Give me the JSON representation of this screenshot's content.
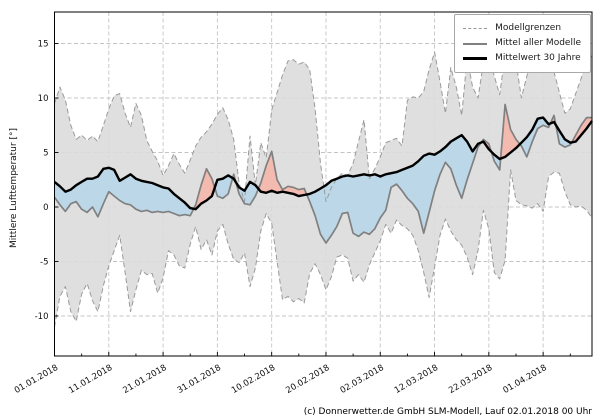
{
  "figure": {
    "footer": "(c) Donnerwetter.de GmbH SLM-Modell, Lauf 02.01.2018 00 Uhr"
  },
  "legend": {
    "position": "upper right",
    "entries": [
      {
        "label": "Modellgrenzen",
        "line": "dashed-thin-gray"
      },
      {
        "label": "Mittel aller Modelle",
        "line": "solid-gray"
      },
      {
        "label": "Mittelwert 30 Jahre",
        "line": "solid-thick-black"
      }
    ]
  },
  "chart_data": {
    "type": "line+area",
    "title": "",
    "xlabel": "",
    "ylabel": "Mittlere Lufttemperatur [°]",
    "x_is_daily_from": "01.01.2018",
    "x_tick_days": [
      0,
      10,
      20,
      30,
      40,
      50,
      60,
      70,
      80,
      90
    ],
    "x_tick_labels": [
      "01.01.2018",
      "11.01.2018",
      "21.01.2018",
      "31.01.2018",
      "10.02.2018",
      "20.02.2018",
      "02.03.2018",
      "12.03.2018",
      "22.03.2018",
      "01.04.2018"
    ],
    "x_minor_step": 5,
    "yticks": [
      -10,
      -5,
      0,
      5,
      10,
      15
    ],
    "ylim": [
      -13.7,
      17.9
    ],
    "grid": true,
    "colors": {
      "envelope_fill": "#dcdcdc",
      "envelope_edge": "#9a9a9a",
      "warmer_fill": "#f3b7ad",
      "colder_fill": "#b9d7e8",
      "model_mean_line": "#808080",
      "climate_line": "#000000",
      "grid": "#c4c4c4",
      "frame": "#000000"
    },
    "series": [
      {
        "name": "Modellgrenzen (Maximum)",
        "role": "envelope_top",
        "values": [
          9.5,
          11.0,
          9.8,
          7.5,
          6.2,
          6.6,
          6.1,
          6.5,
          6.0,
          7.5,
          9.0,
          10.2,
          10.4,
          8.6,
          7.3,
          9.5,
          8.4,
          6.1,
          5.1,
          4.2,
          2.9,
          3.8,
          4.9,
          3.9,
          3.1,
          4.3,
          5.6,
          6.4,
          6.9,
          7.6,
          8.5,
          9.1,
          8.0,
          6.2,
          2.2,
          0.5,
          6.5,
          2.0,
          5.9,
          4.5,
          8.9,
          10.5,
          12.1,
          13.4,
          13.5,
          13.1,
          13.3,
          12.6,
          9.0,
          4.0,
          0.5,
          1.8,
          2.6,
          3.1,
          2.9,
          4.0,
          6.0,
          8.0,
          2.6,
          3.5,
          4.6,
          5.9,
          6.1,
          6.3,
          5.6,
          9.8,
          10.1,
          10.0,
          10.6,
          12.6,
          14.2,
          11.5,
          8.6,
          12.8,
          11.0,
          8.4,
          13.7,
          11.0,
          10.0,
          13.2,
          14.0,
          12.0,
          10.3,
          14.0,
          13.6,
          13.3,
          10.0,
          12.0,
          13.8,
          13.6,
          13.9,
          13.8,
          12.4,
          10.5,
          8.6,
          9.0,
          10.4,
          11.8,
          13.2,
          13.9
        ]
      },
      {
        "name": "Modellgrenzen (Minimum)",
        "role": "envelope_bottom",
        "values": [
          -11.0,
          -8.2,
          -7.3,
          -9.6,
          -10.5,
          -8.0,
          -7.0,
          -8.6,
          -9.6,
          -7.2,
          -5.4,
          -4.0,
          -2.6,
          -6.0,
          -9.6,
          -7.6,
          -5.8,
          -6.2,
          -6.1,
          -7.9,
          -6.5,
          -4.0,
          -4.4,
          -5.4,
          -5.6,
          -3.4,
          -1.8,
          -3.9,
          -3.0,
          -4.4,
          -2.2,
          -1.6,
          -3.4,
          -4.8,
          -5.1,
          -4.2,
          -7.3,
          -5.6,
          -2.2,
          -0.6,
          -1.5,
          -5.0,
          -8.5,
          -8.2,
          -8.7,
          -8.4,
          -8.8,
          -6.1,
          -5.2,
          -6.2,
          -7.6,
          -6.4,
          -4.6,
          -4.4,
          -4.7,
          -6.8,
          -6.2,
          -6.9,
          -5.3,
          -4.2,
          -3.1,
          -1.6,
          -2.4,
          -1.2,
          -1.7,
          -2.0,
          -2.6,
          -4.0,
          -6.0,
          -8.3,
          -5.5,
          -2.6,
          -1.1,
          -2.2,
          -3.0,
          -3.5,
          -4.6,
          -6.2,
          -4.0,
          -0.3,
          -2.0,
          -6.0,
          -6.6,
          -4.9,
          3.4,
          0.6,
          0.2,
          0.1,
          -0.1,
          0.3,
          -0.4,
          2.8,
          3.2,
          3.1,
          1.4,
          0.2,
          0.0,
          0.1,
          -0.3,
          -1.0
        ]
      },
      {
        "name": "Mittel aller Modelle",
        "role": "model_mean",
        "values": [
          0.9,
          0.2,
          -0.4,
          0.3,
          0.5,
          -0.2,
          -0.5,
          0.0,
          -0.9,
          0.3,
          1.4,
          1.0,
          0.6,
          0.3,
          0.2,
          -0.2,
          -0.4,
          -0.3,
          -0.5,
          -0.4,
          -0.5,
          -0.4,
          -0.6,
          -0.8,
          -0.7,
          -0.8,
          0.2,
          2.0,
          3.5,
          2.6,
          1.0,
          0.8,
          1.2,
          3.0,
          1.2,
          0.3,
          0.2,
          1.0,
          2.2,
          3.8,
          5.1,
          2.5,
          1.6,
          1.9,
          1.8,
          1.6,
          1.7,
          0.5,
          -0.8,
          -2.5,
          -3.3,
          -2.6,
          -1.8,
          -0.6,
          -0.5,
          -2.4,
          -2.7,
          -2.3,
          -2.5,
          -2.0,
          -1.0,
          -0.3,
          1.8,
          2.1,
          1.5,
          0.8,
          0.3,
          -0.4,
          -2.4,
          -0.5,
          1.5,
          3.0,
          4.1,
          3.5,
          2.0,
          0.8,
          2.5,
          4.0,
          5.5,
          6.2,
          5.8,
          4.2,
          3.4,
          9.4,
          7.1,
          6.2,
          5.6,
          4.6,
          6.0,
          7.2,
          7.5,
          7.3,
          8.4,
          5.8,
          5.5,
          5.7,
          6.6,
          7.5,
          8.2,
          8.2
        ]
      },
      {
        "name": "Mittelwert 30 Jahre",
        "role": "climate_mean_30y",
        "values": [
          2.3,
          1.9,
          1.4,
          1.6,
          2.0,
          2.3,
          2.6,
          2.6,
          2.8,
          3.5,
          3.6,
          3.4,
          2.4,
          2.7,
          3.0,
          2.6,
          2.4,
          2.3,
          2.2,
          2.0,
          1.8,
          1.7,
          1.2,
          0.8,
          0.4,
          -0.1,
          -0.2,
          0.3,
          0.6,
          1.0,
          2.5,
          2.6,
          2.9,
          2.6,
          1.8,
          1.5,
          2.3,
          2.0,
          1.4,
          1.3,
          1.5,
          1.3,
          1.4,
          1.3,
          1.2,
          1.0,
          1.1,
          1.2,
          1.4,
          1.7,
          2.0,
          2.4,
          2.6,
          2.8,
          2.9,
          2.8,
          2.9,
          3.0,
          2.9,
          3.0,
          2.8,
          3.0,
          3.1,
          3.2,
          3.4,
          3.6,
          3.8,
          4.2,
          4.7,
          4.9,
          4.8,
          5.1,
          5.5,
          6.0,
          6.3,
          6.6,
          6.0,
          5.1,
          5.8,
          6.0,
          5.3,
          4.8,
          4.4,
          4.6,
          5.0,
          5.4,
          5.9,
          6.4,
          7.1,
          8.1,
          8.2,
          7.6,
          7.8,
          7.0,
          6.2,
          5.9,
          6.0,
          6.6,
          7.2,
          7.9
        ]
      }
    ]
  }
}
